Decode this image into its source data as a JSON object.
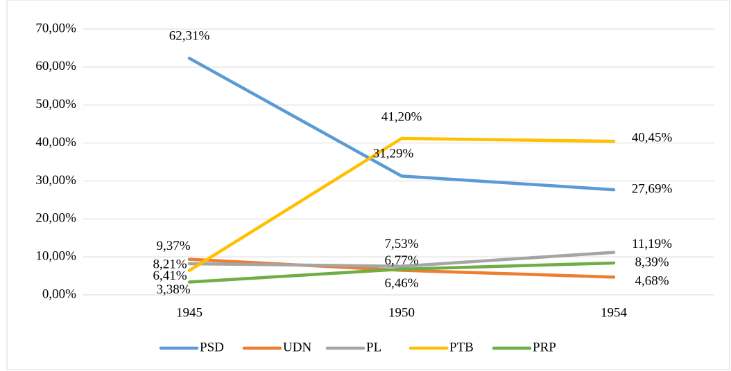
{
  "chart_data": {
    "type": "line",
    "categories": [
      "1945",
      "1950",
      "1954"
    ],
    "series": [
      {
        "name": "PSD",
        "color": "#5b9bd5",
        "values": [
          62.31,
          31.29,
          27.69
        ],
        "value_labels": [
          "62,31%",
          "31,29%",
          "27,69%"
        ]
      },
      {
        "name": "UDN",
        "color": "#ed7d31",
        "values": [
          9.37,
          6.46,
          4.68
        ],
        "value_labels": [
          "9,37%",
          "6,46%",
          "4,68%"
        ]
      },
      {
        "name": "PL",
        "color": "#a5a5a5",
        "values": [
          8.21,
          7.53,
          11.19
        ],
        "value_labels": [
          "8,21%",
          "7,53%",
          "11,19%"
        ]
      },
      {
        "name": "PTB",
        "color": "#ffc000",
        "values": [
          6.41,
          41.2,
          40.45
        ],
        "value_labels": [
          "6,41%",
          "41,20%",
          "40,45%"
        ]
      },
      {
        "name": "PRP",
        "color": "#70ad47",
        "values": [
          3.38,
          6.77,
          8.39
        ],
        "value_labels": [
          "3,38%",
          "6,77%",
          "8,39%"
        ]
      }
    ],
    "ylim": [
      0,
      70
    ],
    "yticks": [
      {
        "value": 0,
        "label": "0,00%"
      },
      {
        "value": 10,
        "label": "10,00%"
      },
      {
        "value": 20,
        "label": "20,00%"
      },
      {
        "value": 30,
        "label": "30,00%"
      },
      {
        "value": 40,
        "label": "40,00%"
      },
      {
        "value": 50,
        "label": "50,00%"
      },
      {
        "value": 60,
        "label": "60,00%"
      },
      {
        "value": 70,
        "label": "70,00%"
      }
    ],
    "grid": true,
    "legend": "bottom"
  }
}
